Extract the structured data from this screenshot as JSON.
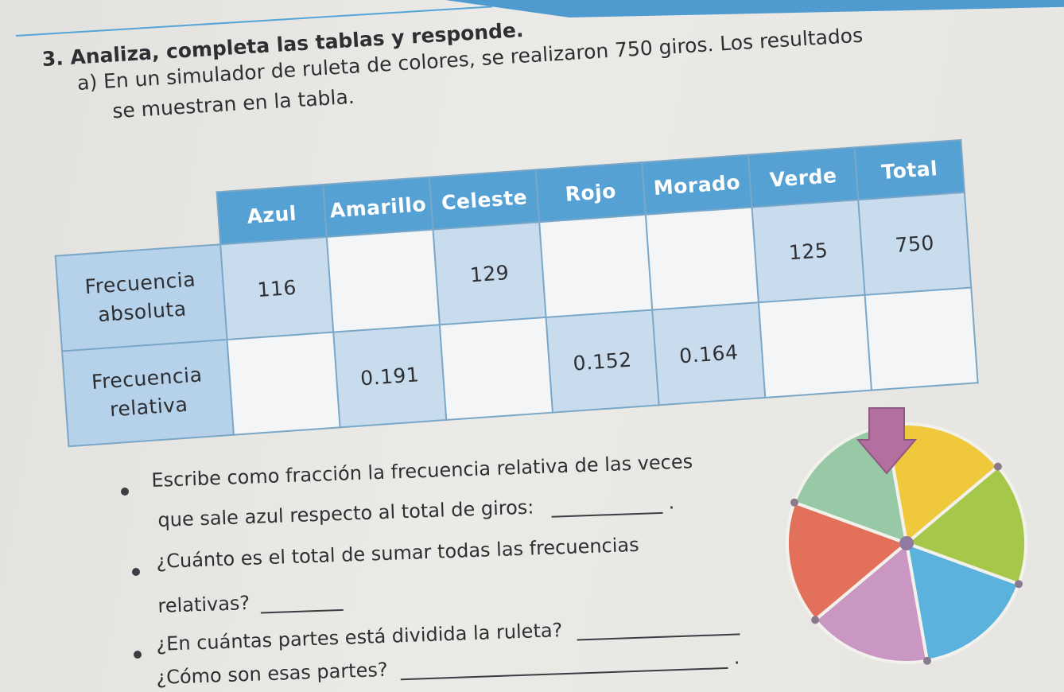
{
  "heading": "3. Analiza, completa las tablas y responde.",
  "intro": {
    "line1": "a) En un simulador de ruleta de colores, se realizaron 750 giros. Los resultados",
    "line2": "se muestran en la tabla."
  },
  "table": {
    "columns": [
      "Azul",
      "Amarillo",
      "Celeste",
      "Rojo",
      "Morado",
      "Verde",
      "Total"
    ],
    "rows": [
      {
        "label_line1": "Frecuencia",
        "label_line2": "absoluta",
        "values": [
          "116",
          "",
          "129",
          "",
          "",
          "125",
          "750"
        ]
      },
      {
        "label_line1": "Frecuencia",
        "label_line2": "relativa",
        "values": [
          "",
          "0.191",
          "",
          "0.152",
          "0.164",
          "",
          ""
        ]
      }
    ]
  },
  "questions": {
    "q1_line1": "Escribe como fracción la frecuencia relativa de las veces",
    "q1_line2": "que sale azul respecto al total de giros:",
    "q1_end": ".",
    "q2_line1": "¿Cuánto es el total de sumar todas las frecuencias",
    "q2_line2": "relativas?",
    "q3_line1": "¿En cuántas partes está dividida la ruleta?",
    "q3_line2": "¿Cómo son esas partes?",
    "q3_end": "."
  },
  "wheel": {
    "colors": [
      "#efc93b",
      "#a6c84a",
      "#5bb3dd",
      "#c997c2",
      "#e2705a",
      "#98c9a6"
    ],
    "pointer_color": "#b26f9f"
  }
}
